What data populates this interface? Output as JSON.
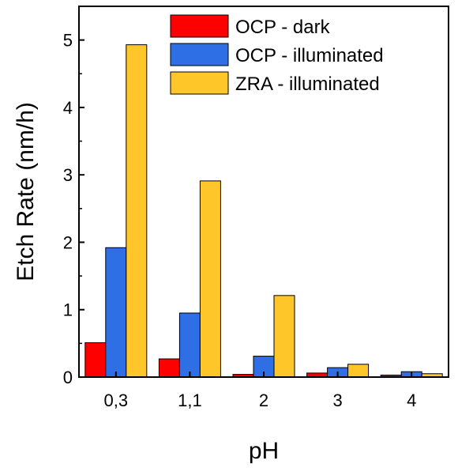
{
  "chart_data": {
    "type": "bar",
    "title": "",
    "xlabel": "pH",
    "ylabel": "Etch Rate (nm/h)",
    "categories": [
      "0,3",
      "1,1",
      "2",
      "3",
      "4"
    ],
    "ylim": [
      0,
      5.5
    ],
    "yticks": [
      "0",
      "1",
      "2",
      "3",
      "4",
      "5"
    ],
    "grid": false,
    "legend_position": "top-right",
    "series": [
      {
        "name": "OCP - dark",
        "color": "#ff0000",
        "values": [
          0.51,
          0.27,
          0.04,
          0.06,
          0.03
        ]
      },
      {
        "name": "OCP - illuminated",
        "color": "#2f6fe6",
        "values": [
          1.92,
          0.95,
          0.31,
          0.14,
          0.08
        ]
      },
      {
        "name": "ZRA - illuminated",
        "color": "#ffc629",
        "values": [
          4.93,
          2.91,
          1.21,
          0.19,
          0.05
        ]
      }
    ]
  }
}
